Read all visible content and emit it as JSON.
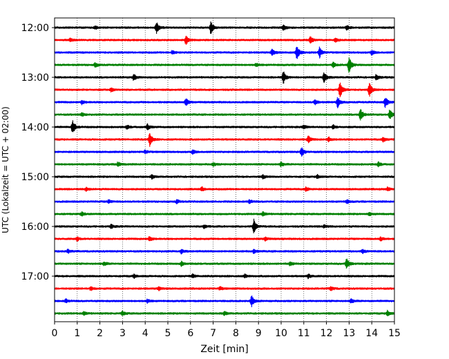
{
  "chart_data": {
    "type": "line",
    "title": "",
    "xlabel": "Zeit  [min]",
    "ylabel": "UTC (Lokalzeit = UTC + 02:00)",
    "xlim": [
      0,
      15
    ],
    "x_ticks": [
      0,
      1,
      2,
      3,
      4,
      5,
      6,
      7,
      8,
      9,
      10,
      11,
      12,
      13,
      14,
      15
    ],
    "x_tick_labels": [
      "0",
      "1",
      "2",
      "3",
      "4",
      "5",
      "6",
      "7",
      "8",
      "9",
      "10",
      "11",
      "12",
      "13",
      "14",
      "15"
    ],
    "y_tick_labels": [
      "12:00",
      "13:00",
      "14:00",
      "15:00",
      "16:00",
      "17:00"
    ],
    "grid": "vertical dotted",
    "colors": [
      "#000000",
      "#ff0000",
      "#0000ff",
      "#008000"
    ],
    "traces": [
      {
        "start": "12:00",
        "color": "#000000",
        "events": [
          [
            1.8,
            0.25
          ],
          [
            4.5,
            0.95
          ],
          [
            6.9,
            1.0
          ],
          [
            10.1,
            0.5
          ],
          [
            12.9,
            0.35
          ]
        ]
      },
      {
        "start": "12:15",
        "color": "#ff0000",
        "events": [
          [
            0.7,
            0.3
          ],
          [
            5.8,
            0.75
          ],
          [
            11.3,
            0.6
          ],
          [
            12.4,
            0.3
          ]
        ]
      },
      {
        "start": "12:30",
        "color": "#0000ff",
        "events": [
          [
            5.2,
            0.3
          ],
          [
            9.6,
            0.55
          ],
          [
            10.7,
            1.15
          ],
          [
            11.7,
            0.85
          ],
          [
            14.0,
            0.35
          ]
        ]
      },
      {
        "start": "12:45",
        "color": "#008000",
        "events": [
          [
            1.8,
            0.35
          ],
          [
            8.9,
            0.3
          ],
          [
            12.3,
            0.4
          ],
          [
            13.0,
            1.35
          ]
        ]
      },
      {
        "start": "13:00",
        "color": "#000000",
        "events": [
          [
            3.5,
            0.55
          ],
          [
            10.1,
            1.0
          ],
          [
            11.9,
            0.85
          ],
          [
            14.2,
            0.45
          ]
        ]
      },
      {
        "start": "13:15",
        "color": "#ff0000",
        "events": [
          [
            2.5,
            0.3
          ],
          [
            12.6,
            1.3
          ],
          [
            13.9,
            1.1
          ]
        ]
      },
      {
        "start": "13:30",
        "color": "#0000ff",
        "events": [
          [
            1.2,
            0.35
          ],
          [
            5.8,
            0.6
          ],
          [
            11.5,
            0.4
          ],
          [
            12.5,
            0.9
          ],
          [
            14.6,
            0.9
          ]
        ]
      },
      {
        "start": "13:45",
        "color": "#008000",
        "events": [
          [
            1.2,
            0.3
          ],
          [
            13.5,
            1.05
          ],
          [
            14.8,
            0.85
          ]
        ]
      },
      {
        "start": "14:00",
        "color": "#000000",
        "events": [
          [
            0.8,
            1.2
          ],
          [
            3.2,
            0.3
          ],
          [
            4.1,
            0.45
          ],
          [
            11.0,
            0.3
          ],
          [
            12.3,
            0.3
          ]
        ]
      },
      {
        "start": "14:15",
        "color": "#ff0000",
        "events": [
          [
            4.2,
            1.1
          ],
          [
            11.2,
            0.55
          ],
          [
            12.1,
            0.4
          ],
          [
            14.5,
            0.4
          ]
        ]
      },
      {
        "start": "14:30",
        "color": "#0000ff",
        "events": [
          [
            4.0,
            0.3
          ],
          [
            6.1,
            0.3
          ],
          [
            10.9,
            0.75
          ]
        ]
      },
      {
        "start": "14:45",
        "color": "#008000",
        "events": [
          [
            2.8,
            0.4
          ],
          [
            7.0,
            0.3
          ],
          [
            10.0,
            0.3
          ],
          [
            14.3,
            0.35
          ]
        ]
      },
      {
        "start": "15:00",
        "color": "#000000",
        "events": [
          [
            4.3,
            0.3
          ],
          [
            9.2,
            0.3
          ],
          [
            11.6,
            0.3
          ]
        ]
      },
      {
        "start": "15:15",
        "color": "#ff0000",
        "events": [
          [
            1.4,
            0.3
          ],
          [
            6.5,
            0.35
          ],
          [
            11.1,
            0.35
          ],
          [
            14.7,
            0.3
          ]
        ]
      },
      {
        "start": "15:30",
        "color": "#0000ff",
        "events": [
          [
            2.4,
            0.3
          ],
          [
            5.4,
            0.3
          ],
          [
            8.6,
            0.3
          ],
          [
            12.9,
            0.3
          ]
        ]
      },
      {
        "start": "15:45",
        "color": "#008000",
        "events": [
          [
            1.2,
            0.35
          ],
          [
            9.2,
            0.35
          ],
          [
            13.9,
            0.3
          ]
        ]
      },
      {
        "start": "16:00",
        "color": "#000000",
        "events": [
          [
            2.5,
            0.3
          ],
          [
            6.6,
            0.35
          ],
          [
            8.8,
            1.15
          ],
          [
            11.9,
            0.3
          ]
        ]
      },
      {
        "start": "16:15",
        "color": "#ff0000",
        "events": [
          [
            1.0,
            0.3
          ],
          [
            4.2,
            0.45
          ],
          [
            9.3,
            0.3
          ],
          [
            14.4,
            0.3
          ]
        ]
      },
      {
        "start": "16:30",
        "color": "#0000ff",
        "events": [
          [
            0.6,
            0.3
          ],
          [
            5.6,
            0.35
          ],
          [
            8.8,
            0.3
          ],
          [
            13.6,
            0.35
          ]
        ]
      },
      {
        "start": "16:45",
        "color": "#008000",
        "events": [
          [
            2.2,
            0.3
          ],
          [
            5.6,
            0.35
          ],
          [
            10.4,
            0.3
          ],
          [
            12.9,
            0.95
          ]
        ]
      },
      {
        "start": "17:00",
        "color": "#000000",
        "events": [
          [
            3.5,
            0.3
          ],
          [
            6.1,
            0.3
          ],
          [
            8.4,
            0.3
          ],
          [
            11.2,
            0.35
          ]
        ]
      },
      {
        "start": "17:15",
        "color": "#ff0000",
        "events": [
          [
            1.6,
            0.3
          ],
          [
            4.6,
            0.3
          ],
          [
            7.3,
            0.3
          ],
          [
            12.2,
            0.3
          ]
        ]
      },
      {
        "start": "17:30",
        "color": "#0000ff",
        "events": [
          [
            0.5,
            0.3
          ],
          [
            4.1,
            0.3
          ],
          [
            8.7,
            0.9
          ],
          [
            13.1,
            0.3
          ]
        ]
      },
      {
        "start": "17:45",
        "color": "#008000",
        "events": [
          [
            1.3,
            0.3
          ],
          [
            3.0,
            0.35
          ],
          [
            7.5,
            0.3
          ],
          [
            14.7,
            0.45
          ]
        ]
      }
    ]
  }
}
